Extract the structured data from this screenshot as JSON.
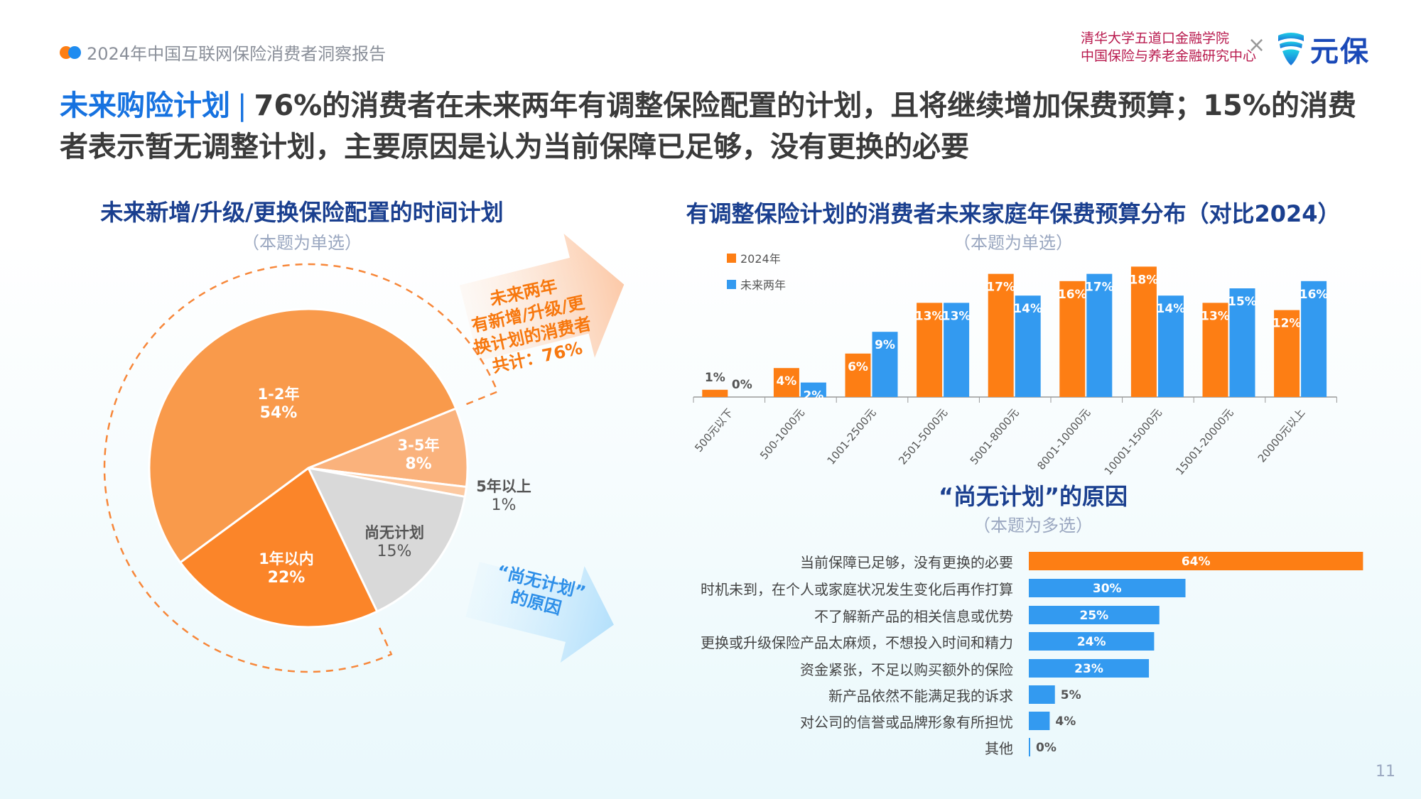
{
  "header": {
    "report_title": "2024年中国互联网保险消费者洞察报告",
    "org_line1": "清华大学五道口金融学院",
    "org_line2": "中国保险与养老金融研究中心",
    "times": "×",
    "brand": "元保",
    "brand_icon": "shield-wave-icon"
  },
  "headline": {
    "tag": "未来购险计划",
    "separator": "|",
    "text": "76%的消费者在未来两年有调整保险配置的计划，且将继续增加保费预算；15%的消费者表示暂无调整计划，主要原因是认为当前保障已足够，没有更换的必要"
  },
  "colors": {
    "orange": "#fd7e14",
    "blue": "#339af0",
    "accent": "#1672e0"
  },
  "left": {
    "title": "未来新增/升级/更换保险配置的时间计划",
    "subtitle": "（本题为单选）",
    "callout_orange": [
      "未来两年",
      "有新增/升级/更",
      "换计划的消费者",
      "共计：76%"
    ],
    "callout_blue": [
      "“尚无计划”",
      "的原因"
    ]
  },
  "chart_data": [
    {
      "type": "pie",
      "slices": [
        {
          "label": "3-5年",
          "value": 8,
          "color": "#fab27c"
        },
        {
          "label": "5年以上",
          "value": 1,
          "color": "#fcc9a1"
        },
        {
          "label": "尚无计划",
          "value": 15,
          "color": "#d9d9d9"
        },
        {
          "label": "1年以内",
          "value": 22,
          "color": "#fb8529"
        },
        {
          "label": "1-2年",
          "value": 54,
          "color": "#f99a4b"
        }
      ]
    },
    {
      "type": "bar",
      "title": "有调整保险计划的消费者未来家庭年保费预算分布（对比2024）",
      "subtitle": "（本题为单选）",
      "legend": "top-left",
      "categories": [
        "500元以下",
        "500-1000元",
        "1001-2500元",
        "2501-5000元",
        "5001-8000元",
        "8001-10000元",
        "10001-15000元",
        "15001-20000元",
        "20000元以上"
      ],
      "series": [
        {
          "name": "2024年",
          "color": "#fd7e14",
          "values": [
            1,
            4,
            6,
            13,
            17,
            16,
            18,
            13,
            12
          ]
        },
        {
          "name": "未来两年",
          "color": "#339af0",
          "values": [
            0,
            2,
            9,
            13,
            14,
            17,
            14,
            15,
            16
          ]
        }
      ]
    },
    {
      "type": "bar",
      "orientation": "horizontal",
      "title": "“尚无计划”的原因",
      "subtitle": "（本题为多选）",
      "categories": [
        "当前保障已足够，没有更换的必要",
        "时机未到，在个人或家庭状况发生变化后再作打算",
        "不了解新产品的相关信息或优势",
        "更换或升级保险产品太麻烦，不想投入时间和精力",
        "资金紧张，不足以购买额外的保险",
        "新产品依然不能满足我的诉求",
        "对公司的信誉或品牌形象有所担忧",
        "其他"
      ],
      "values": [
        64,
        30,
        25,
        24,
        23,
        5,
        4,
        0
      ],
      "colors": [
        "#fd7e14",
        "#339af0",
        "#339af0",
        "#339af0",
        "#339af0",
        "#339af0",
        "#339af0",
        "#339af0"
      ]
    }
  ],
  "page_number": "11"
}
